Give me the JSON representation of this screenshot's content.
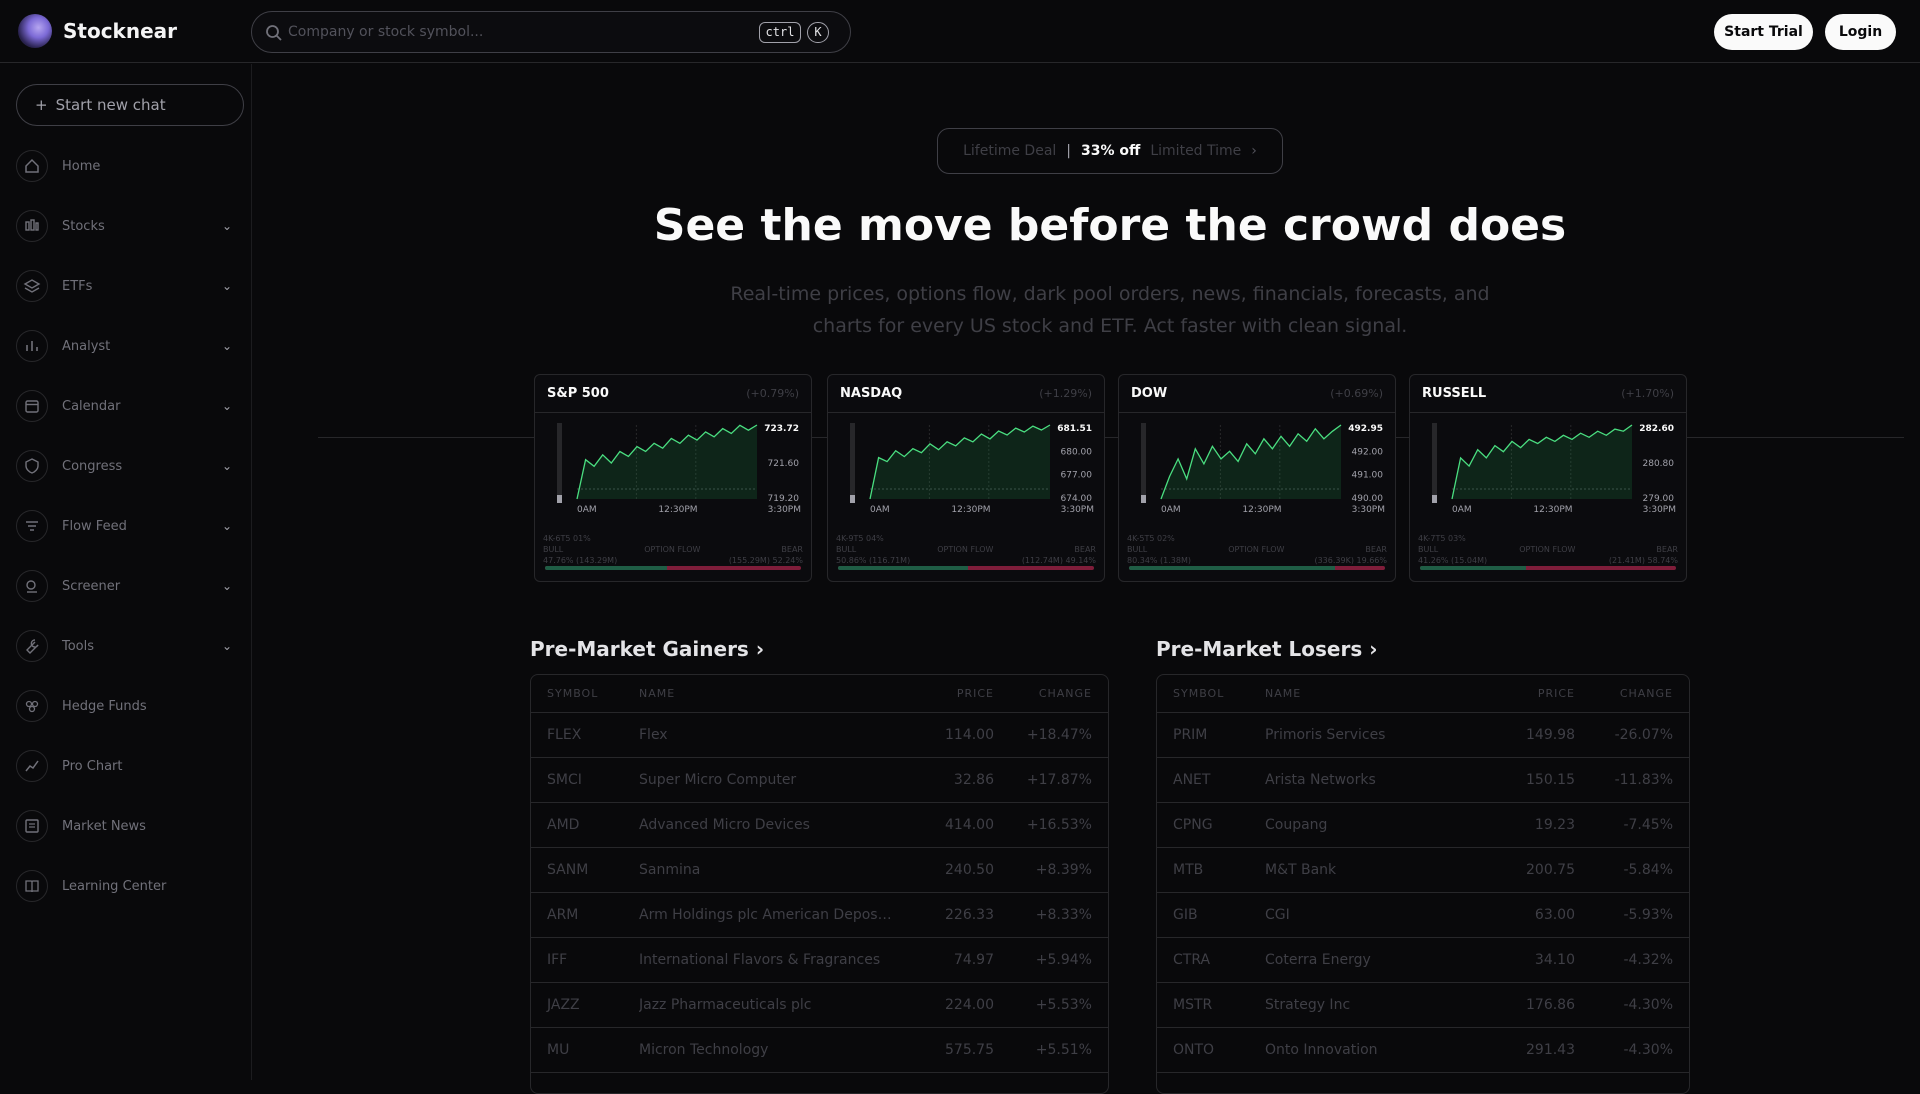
{
  "header": {
    "brand": "Stocknear",
    "search_placeholder": "Company or stock symbol...",
    "kbd_ctrl": "ctrl",
    "kbd_k": "K",
    "start_trial": "Start Trial",
    "login": "Login"
  },
  "sidebar": {
    "new_chat": "Start new chat",
    "items": [
      {
        "label": "Home",
        "icon": "home-icon",
        "expandable": false
      },
      {
        "label": "Stocks",
        "icon": "stocks-icon",
        "expandable": true
      },
      {
        "label": "ETFs",
        "icon": "layers-icon",
        "expandable": true
      },
      {
        "label": "Analyst",
        "icon": "bar-chart-icon",
        "expandable": true
      },
      {
        "label": "Calendar",
        "icon": "calendar-icon",
        "expandable": true
      },
      {
        "label": "Congress",
        "icon": "shield-icon",
        "expandable": true
      },
      {
        "label": "Flow Feed",
        "icon": "filter-icon",
        "expandable": true
      },
      {
        "label": "Screener",
        "icon": "screener-icon",
        "expandable": true
      },
      {
        "label": "Tools",
        "icon": "wrench-icon",
        "expandable": true
      },
      {
        "label": "Hedge Funds",
        "icon": "hedge-funds-icon",
        "expandable": false
      },
      {
        "label": "Pro Chart",
        "icon": "line-chart-icon",
        "expandable": false
      },
      {
        "label": "Market News",
        "icon": "newspaper-icon",
        "expandable": false
      },
      {
        "label": "Learning Center",
        "icon": "book-icon",
        "expandable": false
      }
    ]
  },
  "deal": {
    "left": "Lifetime Deal",
    "sep": "|",
    "highlight": "33% off",
    "right": "Limited Time"
  },
  "hero": {
    "title": "See the move before the crowd does",
    "subtitle": "Real-time prices, options flow, dark pool orders, news, financials, forecasts, and charts for every US stock and ETF. Act faster with clean signal."
  },
  "indices": [
    {
      "name": "S&P 500",
      "change": "(+0.79%)",
      "y_labels": [
        "723.72",
        "721.60",
        "719.20"
      ],
      "x_labels": [
        "0AM",
        "12:30PM",
        "3:30PM"
      ],
      "corner": "4K-6T5 01%",
      "bull_label": "BULL",
      "bear_label": "BEAR",
      "flow_label": "OPTION FLOW",
      "bull_value": "47.76% (143.29M)",
      "bear_value": "(155.29M) 52.24%",
      "bull_frac": 0.4776,
      "prices": [
        719.2,
        721.6,
        721.2,
        721.9,
        721.4,
        722.1,
        721.8,
        722.4,
        722.1,
        722.6,
        722.3,
        722.9,
        722.6,
        723.1,
        722.8,
        723.3,
        723.0,
        723.5,
        723.2,
        723.7,
        723.4,
        723.72
      ]
    },
    {
      "name": "NASDAQ",
      "change": "(+1.29%)",
      "y_labels": [
        "681.51",
        "680.00",
        "677.00",
        "674.00"
      ],
      "x_labels": [
        "0AM",
        "12:30PM",
        "3:30PM"
      ],
      "corner": "4K-9T5 04%",
      "bull_label": "BULL",
      "bear_label": "BEAR",
      "flow_label": "OPTION FLOW",
      "bull_value": "50.86% (116.71M)",
      "bear_value": "(112.74M) 49.14%",
      "bull_frac": 0.5086,
      "prices": [
        674.0,
        678.2,
        677.8,
        678.9,
        678.3,
        679.1,
        678.7,
        679.6,
        679.0,
        679.8,
        679.4,
        680.2,
        679.8,
        680.6,
        680.1,
        680.9,
        680.5,
        681.2,
        680.8,
        681.4,
        681.0,
        681.51
      ]
    },
    {
      "name": "DOW",
      "change": "(+0.69%)",
      "y_labels": [
        "492.95",
        "492.00",
        "491.00",
        "490.00"
      ],
      "x_labels": [
        "0AM",
        "12:30PM",
        "3:30PM"
      ],
      "corner": "4K-5T5 02%",
      "bull_label": "BULL",
      "bear_label": "BEAR",
      "flow_label": "OPTION FLOW",
      "bull_value": "80.34% (1.38M)",
      "bear_value": "(336.39K) 19.66%",
      "bull_frac": 0.8034,
      "prices": [
        490.0,
        490.9,
        491.6,
        490.8,
        492.0,
        491.4,
        492.1,
        491.6,
        491.9,
        491.5,
        492.2,
        491.8,
        492.4,
        492.0,
        492.5,
        492.1,
        492.6,
        492.3,
        492.8,
        492.4,
        492.7,
        492.95
      ]
    },
    {
      "name": "RUSSELL",
      "change": "(+1.70%)",
      "y_labels": [
        "282.60",
        "280.80",
        "279.00"
      ],
      "x_labels": [
        "0AM",
        "12:30PM",
        "3:30PM"
      ],
      "corner": "4K-7T5 03%",
      "bull_label": "BULL",
      "bear_label": "BEAR",
      "flow_label": "OPTION FLOW",
      "bull_value": "41.26% (15.04M)",
      "bear_value": "(21.41M) 58.74%",
      "bull_frac": 0.4126,
      "prices": [
        279.0,
        281.0,
        280.6,
        281.4,
        281.0,
        281.6,
        281.3,
        281.8,
        281.5,
        281.9,
        281.7,
        282.0,
        281.8,
        282.1,
        281.9,
        282.2,
        282.0,
        282.3,
        282.1,
        282.4,
        282.3,
        282.6
      ]
    }
  ],
  "gainers": {
    "title": "Pre-Market Gainers",
    "columns": [
      "SYMBOL",
      "NAME",
      "PRICE",
      "CHANGE"
    ],
    "rows": [
      {
        "symbol": "FLEX",
        "name": "Flex",
        "price": "114.00",
        "change": "+18.47%"
      },
      {
        "symbol": "SMCI",
        "name": "Super Micro Computer",
        "price": "32.86",
        "change": "+17.87%"
      },
      {
        "symbol": "AMD",
        "name": "Advanced Micro Devices",
        "price": "414.00",
        "change": "+16.53%"
      },
      {
        "symbol": "SANM",
        "name": "Sanmina",
        "price": "240.50",
        "change": "+8.39%"
      },
      {
        "symbol": "ARM",
        "name": "Arm Holdings plc American Depositary Shares",
        "price": "226.33",
        "change": "+8.33%"
      },
      {
        "symbol": "IFF",
        "name": "International Flavors & Fragrances",
        "price": "74.97",
        "change": "+5.94%"
      },
      {
        "symbol": "JAZZ",
        "name": "Jazz Pharmaceuticals plc",
        "price": "224.00",
        "change": "+5.53%"
      },
      {
        "symbol": "MU",
        "name": "Micron Technology",
        "price": "575.75",
        "change": "+5.51%"
      }
    ]
  },
  "losers": {
    "title": "Pre-Market Losers",
    "columns": [
      "SYMBOL",
      "NAME",
      "PRICE",
      "CHANGE"
    ],
    "rows": [
      {
        "symbol": "PRIM",
        "name": "Primoris Services",
        "price": "149.98",
        "change": "-26.07%"
      },
      {
        "symbol": "ANET",
        "name": "Arista Networks",
        "price": "150.15",
        "change": "-11.83%"
      },
      {
        "symbol": "CPNG",
        "name": "Coupang",
        "price": "19.23",
        "change": "-7.45%"
      },
      {
        "symbol": "MTB",
        "name": "M&T Bank",
        "price": "200.75",
        "change": "-5.84%"
      },
      {
        "symbol": "GIB",
        "name": "CGI",
        "price": "63.00",
        "change": "-5.93%"
      },
      {
        "symbol": "CTRA",
        "name": "Coterra Energy",
        "price": "34.10",
        "change": "-4.32%"
      },
      {
        "symbol": "MSTR",
        "name": "Strategy Inc",
        "price": "176.86",
        "change": "-4.30%"
      },
      {
        "symbol": "ONTO",
        "name": "Onto Innovation",
        "price": "291.43",
        "change": "-4.30%"
      }
    ]
  },
  "colors": {
    "accent_green": "#4ade80",
    "bull": "#1f5d45",
    "bear": "#7f1d3a",
    "bg": "#09090b"
  }
}
